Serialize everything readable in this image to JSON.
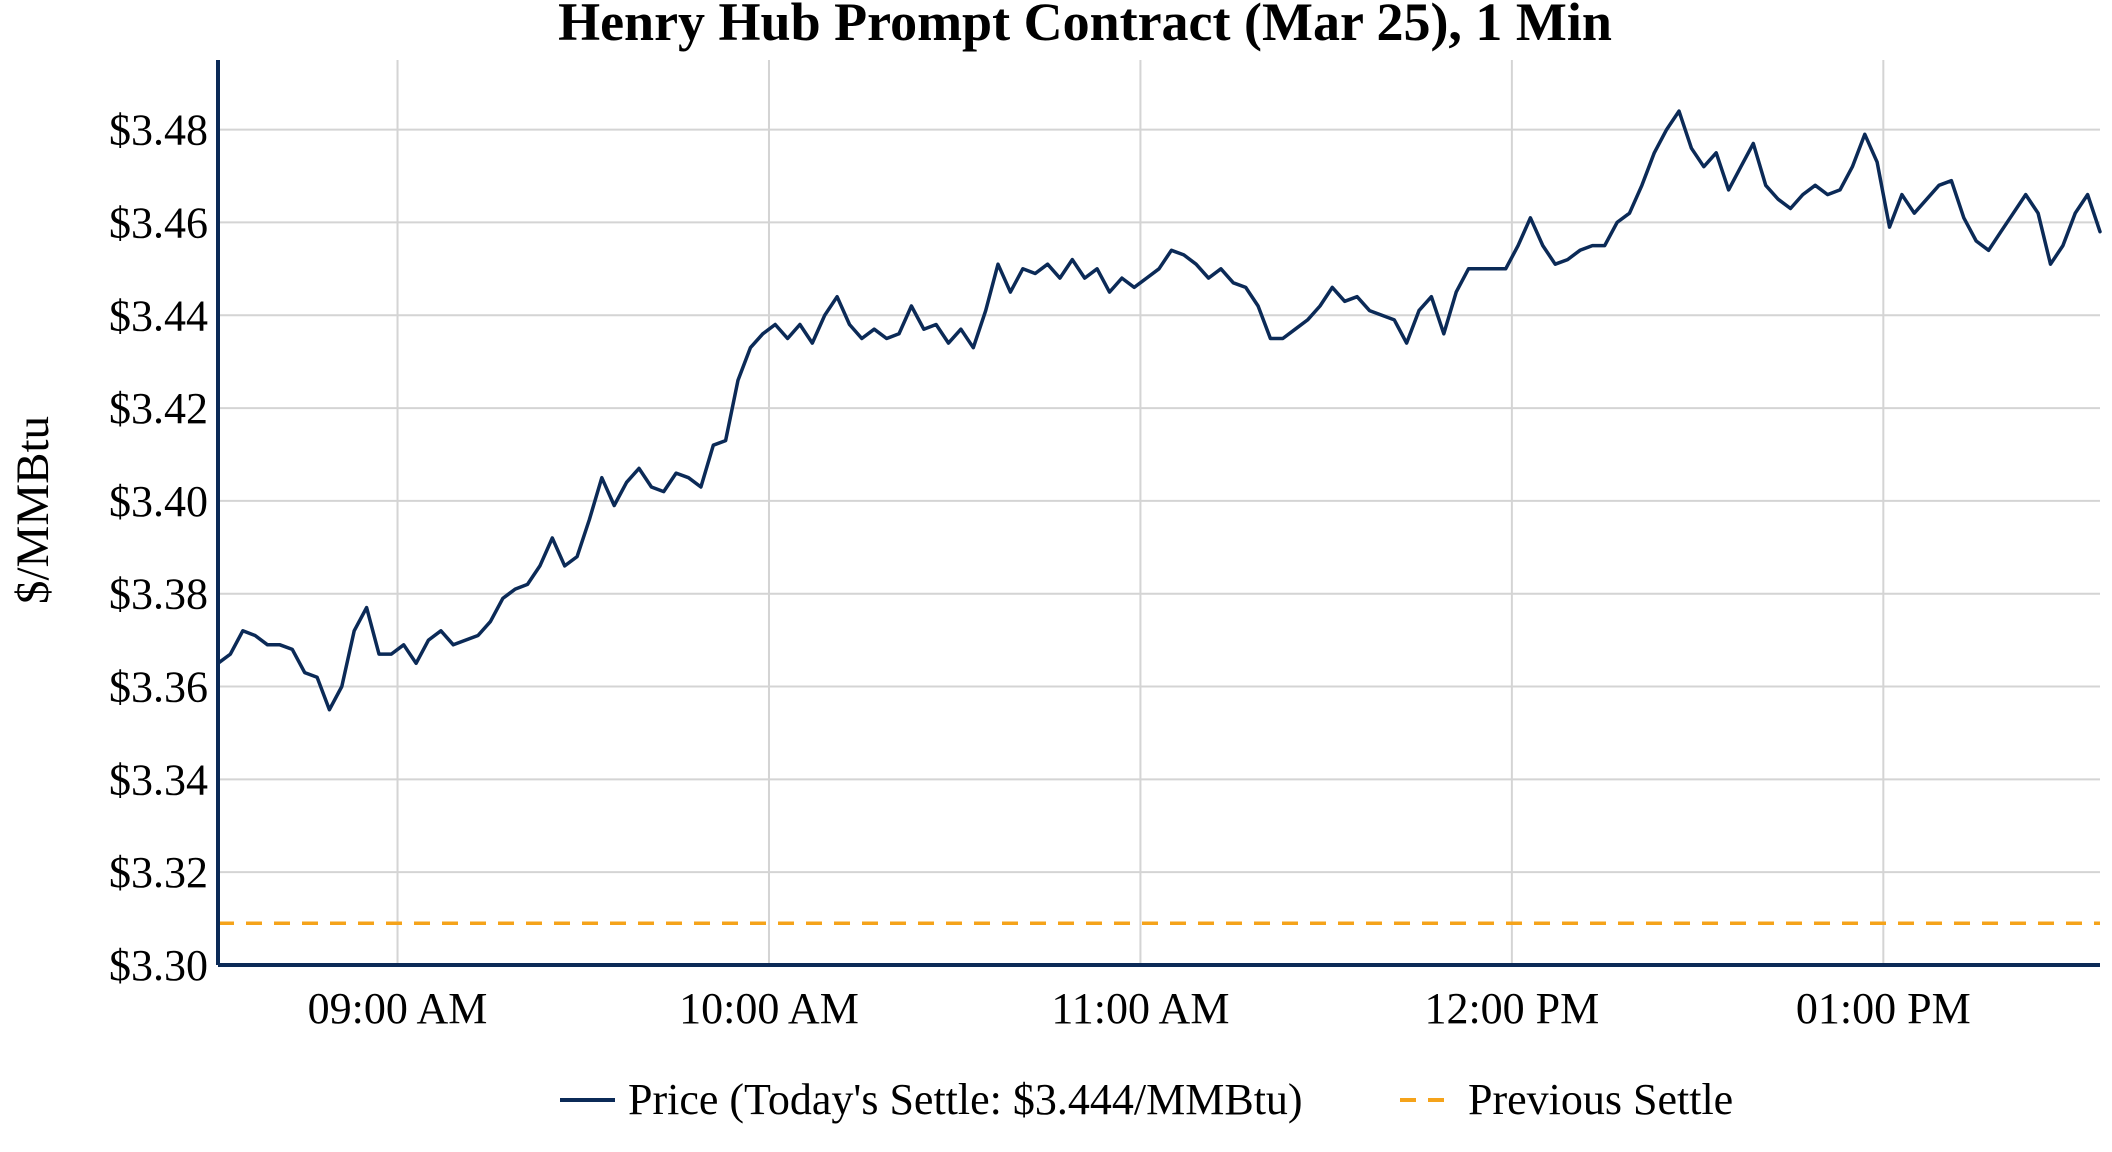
{
  "chart_data": {
    "type": "line",
    "title": "Henry Hub Prompt Contract (Mar 25), 1 Min",
    "xlabel": "",
    "ylabel": "$/MMBtu",
    "ylim": [
      3.3,
      3.495
    ],
    "xlim": [
      "08:31",
      "13:35"
    ],
    "yticks": [
      3.3,
      3.32,
      3.34,
      3.36,
      3.38,
      3.4,
      3.42,
      3.44,
      3.46,
      3.48
    ],
    "ytick_labels": [
      "$3.30",
      "$3.32",
      "$3.34",
      "$3.36",
      "$3.38",
      "$3.40",
      "$3.42",
      "$3.44",
      "$3.46",
      "$3.48"
    ],
    "xticks": [
      "09:00",
      "10:00",
      "11:00",
      "12:00",
      "13:00"
    ],
    "xtick_labels": [
      "09:00 AM",
      "10:00 AM",
      "11:00 AM",
      "12:00 PM",
      "01:00 PM"
    ],
    "grid": true,
    "legend_position": "bottom-center",
    "series": [
      {
        "name": "Price (Today's Settle: $3.444/MMBtu)",
        "color": "#0b2a57",
        "style": "solid",
        "points": [
          [
            "08:31",
            3.365
          ],
          [
            "08:33",
            3.367
          ],
          [
            "08:35",
            3.372
          ],
          [
            "08:37",
            3.371
          ],
          [
            "08:39",
            3.369
          ],
          [
            "08:41",
            3.369
          ],
          [
            "08:43",
            3.368
          ],
          [
            "08:45",
            3.363
          ],
          [
            "08:47",
            3.362
          ],
          [
            "08:49",
            3.355
          ],
          [
            "08:51",
            3.36
          ],
          [
            "08:53",
            3.372
          ],
          [
            "08:55",
            3.377
          ],
          [
            "08:57",
            3.367
          ],
          [
            "08:59",
            3.367
          ],
          [
            "09:01",
            3.369
          ],
          [
            "09:03",
            3.365
          ],
          [
            "09:05",
            3.37
          ],
          [
            "09:07",
            3.372
          ],
          [
            "09:09",
            3.369
          ],
          [
            "09:11",
            3.37
          ],
          [
            "09:13",
            3.371
          ],
          [
            "09:15",
            3.374
          ],
          [
            "09:17",
            3.379
          ],
          [
            "09:19",
            3.381
          ],
          [
            "09:21",
            3.382
          ],
          [
            "09:23",
            3.386
          ],
          [
            "09:25",
            3.392
          ],
          [
            "09:27",
            3.386
          ],
          [
            "09:29",
            3.388
          ],
          [
            "09:31",
            3.396
          ],
          [
            "09:33",
            3.405
          ],
          [
            "09:35",
            3.399
          ],
          [
            "09:37",
            3.404
          ],
          [
            "09:39",
            3.407
          ],
          [
            "09:41",
            3.403
          ],
          [
            "09:43",
            3.402
          ],
          [
            "09:45",
            3.406
          ],
          [
            "09:47",
            3.405
          ],
          [
            "09:49",
            3.403
          ],
          [
            "09:51",
            3.412
          ],
          [
            "09:53",
            3.413
          ],
          [
            "09:55",
            3.426
          ],
          [
            "09:57",
            3.433
          ],
          [
            "09:59",
            3.436
          ],
          [
            "10:01",
            3.438
          ],
          [
            "10:03",
            3.435
          ],
          [
            "10:05",
            3.438
          ],
          [
            "10:07",
            3.434
          ],
          [
            "10:09",
            3.44
          ],
          [
            "10:11",
            3.444
          ],
          [
            "10:13",
            3.438
          ],
          [
            "10:15",
            3.435
          ],
          [
            "10:17",
            3.437
          ],
          [
            "10:19",
            3.435
          ],
          [
            "10:21",
            3.436
          ],
          [
            "10:23",
            3.442
          ],
          [
            "10:25",
            3.437
          ],
          [
            "10:27",
            3.438
          ],
          [
            "10:29",
            3.434
          ],
          [
            "10:31",
            3.437
          ],
          [
            "10:33",
            3.433
          ],
          [
            "10:35",
            3.441
          ],
          [
            "10:37",
            3.451
          ],
          [
            "10:39",
            3.445
          ],
          [
            "10:41",
            3.45
          ],
          [
            "10:43",
            3.449
          ],
          [
            "10:45",
            3.451
          ],
          [
            "10:47",
            3.448
          ],
          [
            "10:49",
            3.452
          ],
          [
            "10:51",
            3.448
          ],
          [
            "10:53",
            3.45
          ],
          [
            "10:55",
            3.445
          ],
          [
            "10:57",
            3.448
          ],
          [
            "10:59",
            3.446
          ],
          [
            "11:01",
            3.448
          ],
          [
            "11:03",
            3.45
          ],
          [
            "11:05",
            3.454
          ],
          [
            "11:07",
            3.453
          ],
          [
            "11:09",
            3.451
          ],
          [
            "11:11",
            3.448
          ],
          [
            "11:13",
            3.45
          ],
          [
            "11:15",
            3.447
          ],
          [
            "11:17",
            3.446
          ],
          [
            "11:19",
            3.442
          ],
          [
            "11:21",
            3.435
          ],
          [
            "11:23",
            3.435
          ],
          [
            "11:25",
            3.437
          ],
          [
            "11:27",
            3.439
          ],
          [
            "11:29",
            3.442
          ],
          [
            "11:31",
            3.446
          ],
          [
            "11:33",
            3.443
          ],
          [
            "11:35",
            3.444
          ],
          [
            "11:37",
            3.441
          ],
          [
            "11:39",
            3.44
          ],
          [
            "11:41",
            3.439
          ],
          [
            "11:43",
            3.434
          ],
          [
            "11:45",
            3.441
          ],
          [
            "11:47",
            3.444
          ],
          [
            "11:49",
            3.436
          ],
          [
            "11:51",
            3.445
          ],
          [
            "11:53",
            3.45
          ],
          [
            "11:55",
            3.45
          ],
          [
            "11:57",
            3.45
          ],
          [
            "11:59",
            3.45
          ],
          [
            "12:01",
            3.455
          ],
          [
            "12:03",
            3.461
          ],
          [
            "12:05",
            3.455
          ],
          [
            "12:07",
            3.451
          ],
          [
            "12:09",
            3.452
          ],
          [
            "12:11",
            3.454
          ],
          [
            "12:13",
            3.455
          ],
          [
            "12:15",
            3.455
          ],
          [
            "12:17",
            3.46
          ],
          [
            "12:19",
            3.462
          ],
          [
            "12:21",
            3.468
          ],
          [
            "12:23",
            3.475
          ],
          [
            "12:25",
            3.48
          ],
          [
            "12:27",
            3.484
          ],
          [
            "12:29",
            3.476
          ],
          [
            "12:31",
            3.472
          ],
          [
            "12:33",
            3.475
          ],
          [
            "12:35",
            3.467
          ],
          [
            "12:37",
            3.472
          ],
          [
            "12:39",
            3.477
          ],
          [
            "12:41",
            3.468
          ],
          [
            "12:43",
            3.465
          ],
          [
            "12:45",
            3.463
          ],
          [
            "12:47",
            3.466
          ],
          [
            "12:49",
            3.468
          ],
          [
            "12:51",
            3.466
          ],
          [
            "12:53",
            3.467
          ],
          [
            "12:55",
            3.472
          ],
          [
            "12:57",
            3.479
          ],
          [
            "12:59",
            3.473
          ],
          [
            "13:01",
            3.459
          ],
          [
            "13:03",
            3.466
          ],
          [
            "13:05",
            3.462
          ],
          [
            "13:07",
            3.465
          ],
          [
            "13:09",
            3.468
          ],
          [
            "13:11",
            3.469
          ],
          [
            "13:13",
            3.461
          ],
          [
            "13:15",
            3.456
          ],
          [
            "13:17",
            3.454
          ],
          [
            "13:19",
            3.458
          ],
          [
            "13:21",
            3.462
          ],
          [
            "13:23",
            3.466
          ],
          [
            "13:25",
            3.462
          ],
          [
            "13:27",
            3.451
          ],
          [
            "13:29",
            3.455
          ],
          [
            "13:31",
            3.462
          ],
          [
            "13:33",
            3.466
          ],
          [
            "13:35",
            3.458
          ]
        ]
      },
      {
        "name": "Previous Settle",
        "color": "#f5a31a",
        "style": "dashed",
        "value": 3.309
      }
    ]
  }
}
